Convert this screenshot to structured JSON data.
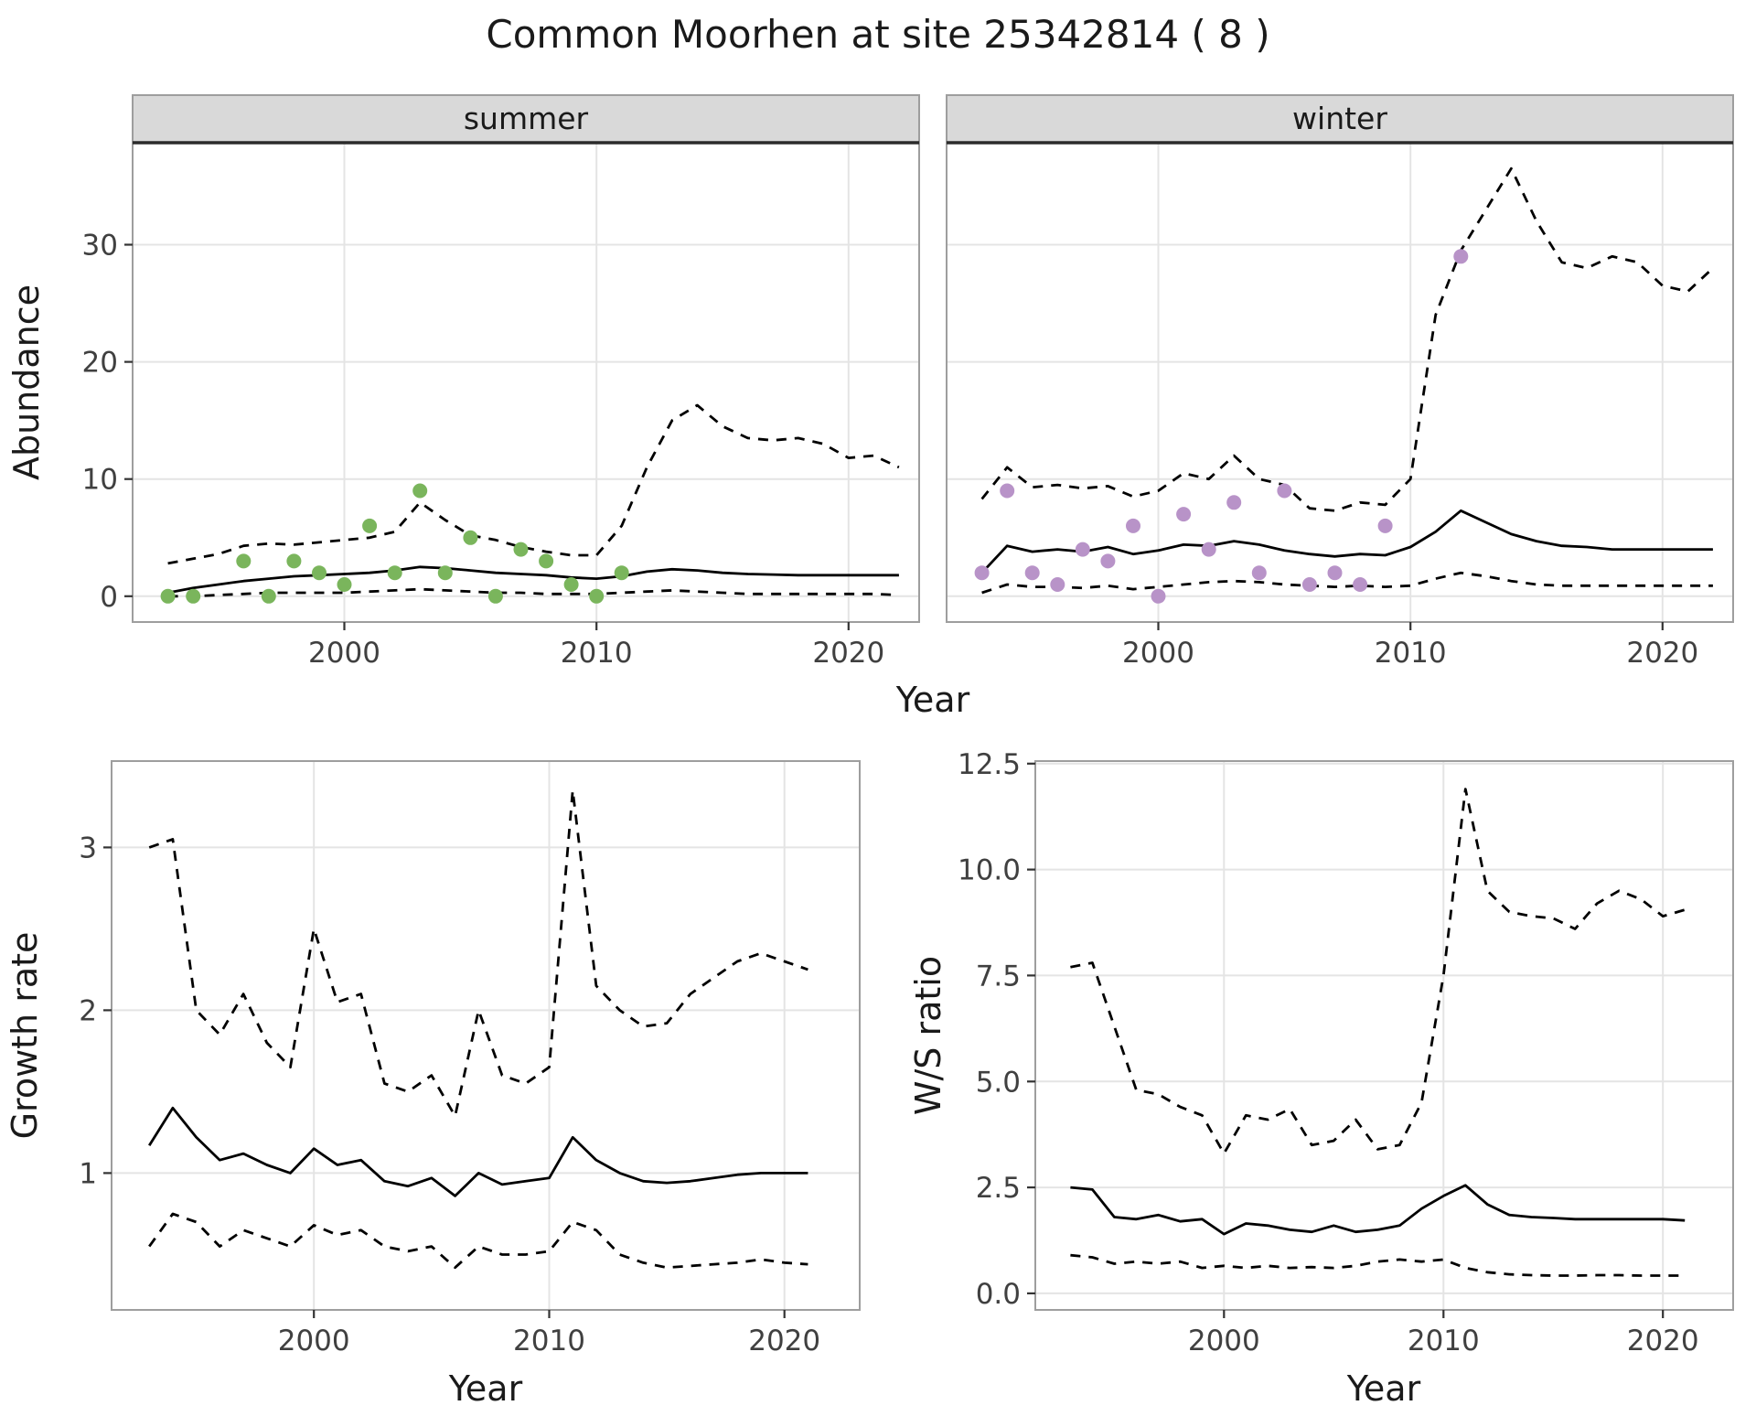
{
  "title": "Common Moorhen at site 25342814 ( 8 )",
  "colors": {
    "summer_points": "#7ab55c",
    "winter_points": "#b893c8",
    "line": "#000000",
    "strip_bg": "#d9d9d9",
    "strip_underline": "#2b2b2b",
    "grid": "#e4e4e4",
    "panel_border": "#9e9e9e",
    "tick": "#333333"
  },
  "chart_data": [
    {
      "id": "abundance-summer",
      "type": "line",
      "facet_label": "summer",
      "xlabel": "Year",
      "ylabel": "Abundance",
      "xlim": [
        1991.6,
        2022.8
      ],
      "ylim": [
        -2.2,
        38.7
      ],
      "xticks": [
        2000,
        2010,
        2020
      ],
      "xtick_labels": [
        "2000",
        "2010",
        "2020"
      ],
      "yticks": [
        0,
        10,
        20,
        30
      ],
      "ytick_labels": [
        "0",
        "10",
        "20",
        "30"
      ],
      "grid": true,
      "legend": "none",
      "series": [
        {
          "name": "upper-ci",
          "style": "dashed",
          "x": [
            1993,
            1994,
            1995,
            1996,
            1997,
            1998,
            1999,
            2000,
            2001,
            2002,
            2003,
            2004,
            2005,
            2006,
            2007,
            2008,
            2009,
            2010,
            2011,
            2012,
            2013,
            2014,
            2015,
            2016,
            2017,
            2018,
            2019,
            2020,
            2021,
            2022
          ],
          "values": [
            2.8,
            3.2,
            3.6,
            4.3,
            4.5,
            4.4,
            4.6,
            4.8,
            5.0,
            5.5,
            8.0,
            6.5,
            5.2,
            4.8,
            4.2,
            3.8,
            3.5,
            3.5,
            6.0,
            11.0,
            15.0,
            16.3,
            14.5,
            13.5,
            13.3,
            13.5,
            13.0,
            11.8,
            12.0,
            11.0
          ]
        },
        {
          "name": "lower-ci",
          "style": "dashed",
          "x": [
            1993,
            1994,
            1995,
            1996,
            1997,
            1998,
            1999,
            2000,
            2001,
            2002,
            2003,
            2004,
            2005,
            2006,
            2007,
            2008,
            2009,
            2010,
            2011,
            2012,
            2013,
            2014,
            2015,
            2016,
            2017,
            2018,
            2019,
            2020,
            2021,
            2022
          ],
          "values": [
            0.0,
            0.0,
            0.1,
            0.2,
            0.3,
            0.3,
            0.3,
            0.3,
            0.4,
            0.5,
            0.6,
            0.5,
            0.4,
            0.3,
            0.3,
            0.2,
            0.2,
            0.2,
            0.3,
            0.4,
            0.5,
            0.4,
            0.3,
            0.2,
            0.2,
            0.2,
            0.2,
            0.2,
            0.2,
            0.1
          ]
        },
        {
          "name": "fit",
          "style": "solid",
          "x": [
            1993,
            1994,
            1995,
            1996,
            1997,
            1998,
            1999,
            2000,
            2001,
            2002,
            2003,
            2004,
            2005,
            2006,
            2007,
            2008,
            2009,
            2010,
            2011,
            2012,
            2013,
            2014,
            2015,
            2016,
            2017,
            2018,
            2019,
            2020,
            2021,
            2022
          ],
          "values": [
            0.3,
            0.7,
            1.0,
            1.3,
            1.5,
            1.7,
            1.8,
            1.9,
            2.0,
            2.2,
            2.5,
            2.4,
            2.2,
            2.0,
            1.9,
            1.8,
            1.6,
            1.5,
            1.7,
            2.1,
            2.3,
            2.2,
            2.0,
            1.9,
            1.85,
            1.8,
            1.8,
            1.8,
            1.8,
            1.8
          ]
        },
        {
          "name": "observations",
          "style": "points",
          "color": "#7ab55c",
          "x": [
            1993,
            1994,
            1996,
            1997,
            1998,
            1999,
            2000,
            2001,
            2002,
            2003,
            2004,
            2005,
            2006,
            2007,
            2008,
            2009,
            2010,
            2011
          ],
          "values": [
            0,
            0,
            3,
            0,
            3,
            2,
            1,
            6,
            2,
            9,
            2,
            5,
            0,
            4,
            3,
            1,
            0,
            2
          ]
        }
      ]
    },
    {
      "id": "abundance-winter",
      "type": "line",
      "facet_label": "winter",
      "xlabel": "Year",
      "ylabel": "Abundance",
      "xlim": [
        1991.6,
        2022.8
      ],
      "ylim": [
        -2.2,
        38.7
      ],
      "xticks": [
        2000,
        2010,
        2020
      ],
      "xtick_labels": [
        "2000",
        "2010",
        "2020"
      ],
      "yticks": [
        0,
        10,
        20,
        30
      ],
      "ytick_labels": [
        "0",
        "10",
        "20",
        "30"
      ],
      "grid": true,
      "legend": "none",
      "series": [
        {
          "name": "upper-ci",
          "style": "dashed",
          "x": [
            1993,
            1994,
            1995,
            1996,
            1997,
            1998,
            1999,
            2000,
            2001,
            2002,
            2003,
            2004,
            2005,
            2006,
            2007,
            2008,
            2009,
            2010,
            2011,
            2012,
            2013,
            2014,
            2015,
            2016,
            2017,
            2018,
            2019,
            2020,
            2021,
            2022
          ],
          "values": [
            8.3,
            11.0,
            9.3,
            9.5,
            9.2,
            9.4,
            8.5,
            9.0,
            10.5,
            10.0,
            12.0,
            10.0,
            9.5,
            7.5,
            7.3,
            8.0,
            7.8,
            10.0,
            24.0,
            29.5,
            33.0,
            36.5,
            32.0,
            28.5,
            28.0,
            29.0,
            28.5,
            26.5,
            26.0,
            28.0
          ]
        },
        {
          "name": "lower-ci",
          "style": "dashed",
          "x": [
            1993,
            1994,
            1995,
            1996,
            1997,
            1998,
            1999,
            2000,
            2001,
            2002,
            2003,
            2004,
            2005,
            2006,
            2007,
            2008,
            2009,
            2010,
            2011,
            2012,
            2013,
            2014,
            2015,
            2016,
            2017,
            2018,
            2019,
            2020,
            2021,
            2022
          ],
          "values": [
            0.3,
            1.0,
            0.8,
            0.8,
            0.7,
            0.9,
            0.6,
            0.8,
            1.0,
            1.2,
            1.3,
            1.2,
            1.0,
            0.9,
            0.8,
            0.9,
            0.8,
            0.9,
            1.5,
            2.0,
            1.7,
            1.3,
            1.0,
            0.9,
            0.9,
            0.9,
            0.9,
            0.9,
            0.9,
            0.9
          ]
        },
        {
          "name": "fit",
          "style": "solid",
          "x": [
            1993,
            1994,
            1995,
            1996,
            1997,
            1998,
            1999,
            2000,
            2001,
            2002,
            2003,
            2004,
            2005,
            2006,
            2007,
            2008,
            2009,
            2010,
            2011,
            2012,
            2013,
            2014,
            2015,
            2016,
            2017,
            2018,
            2019,
            2020,
            2021,
            2022
          ],
          "values": [
            2.0,
            4.3,
            3.8,
            4.0,
            3.8,
            4.2,
            3.6,
            3.9,
            4.4,
            4.3,
            4.7,
            4.4,
            3.9,
            3.6,
            3.4,
            3.6,
            3.5,
            4.2,
            5.5,
            7.3,
            6.3,
            5.3,
            4.7,
            4.3,
            4.2,
            4.0,
            4.0,
            4.0,
            4.0,
            4.0
          ]
        },
        {
          "name": "observations",
          "style": "points",
          "color": "#b893c8",
          "x": [
            1993,
            1994,
            1995,
            1996,
            1997,
            1998,
            1999,
            2000,
            2001,
            2002,
            2003,
            2004,
            2005,
            2006,
            2007,
            2008,
            2009,
            2012
          ],
          "values": [
            2,
            9,
            2,
            1,
            4,
            3,
            6,
            0,
            7,
            4,
            8,
            2,
            9,
            1,
            2,
            1,
            6,
            29
          ]
        }
      ]
    },
    {
      "id": "growth-rate",
      "type": "line",
      "facet_label": "",
      "xlabel": "Year",
      "ylabel": "Growth rate",
      "xlim": [
        1991.4,
        2023.2
      ],
      "ylim": [
        0.16,
        3.53
      ],
      "xticks": [
        2000,
        2010,
        2020
      ],
      "xtick_labels": [
        "2000",
        "2010",
        "2020"
      ],
      "yticks": [
        1,
        2,
        3
      ],
      "ytick_labels": [
        "1",
        "2",
        "3"
      ],
      "grid": true,
      "legend": "none",
      "series": [
        {
          "name": "upper-ci",
          "style": "dashed",
          "x": [
            1993,
            1994,
            1995,
            1996,
            1997,
            1998,
            1999,
            2000,
            2001,
            2002,
            2003,
            2004,
            2005,
            2006,
            2007,
            2008,
            2009,
            2010,
            2011,
            2012,
            2013,
            2014,
            2015,
            2016,
            2017,
            2018,
            2019,
            2020,
            2021
          ],
          "values": [
            3.0,
            3.05,
            2.0,
            1.85,
            2.1,
            1.8,
            1.65,
            2.5,
            2.05,
            2.1,
            1.55,
            1.5,
            1.6,
            1.35,
            2.0,
            1.6,
            1.55,
            1.65,
            3.35,
            2.15,
            2.0,
            1.9,
            1.92,
            2.1,
            2.2,
            2.3,
            2.35,
            2.3,
            2.25
          ]
        },
        {
          "name": "lower-ci",
          "style": "dashed",
          "x": [
            1993,
            1994,
            1995,
            1996,
            1997,
            1998,
            1999,
            2000,
            2001,
            2002,
            2003,
            2004,
            2005,
            2006,
            2007,
            2008,
            2009,
            2010,
            2011,
            2012,
            2013,
            2014,
            2015,
            2016,
            2017,
            2018,
            2019,
            2020,
            2021
          ],
          "values": [
            0.55,
            0.75,
            0.7,
            0.55,
            0.65,
            0.6,
            0.55,
            0.68,
            0.62,
            0.65,
            0.55,
            0.52,
            0.55,
            0.42,
            0.55,
            0.5,
            0.5,
            0.52,
            0.7,
            0.65,
            0.5,
            0.45,
            0.42,
            0.43,
            0.44,
            0.45,
            0.47,
            0.45,
            0.44
          ]
        },
        {
          "name": "fit",
          "style": "solid",
          "x": [
            1993,
            1994,
            1995,
            1996,
            1997,
            1998,
            1999,
            2000,
            2001,
            2002,
            2003,
            2004,
            2005,
            2006,
            2007,
            2008,
            2009,
            2010,
            2011,
            2012,
            2013,
            2014,
            2015,
            2016,
            2017,
            2018,
            2019,
            2020,
            2021
          ],
          "values": [
            1.17,
            1.4,
            1.22,
            1.08,
            1.12,
            1.05,
            1.0,
            1.15,
            1.05,
            1.08,
            0.95,
            0.92,
            0.97,
            0.86,
            1.0,
            0.93,
            0.95,
            0.97,
            1.22,
            1.08,
            1.0,
            0.95,
            0.94,
            0.95,
            0.97,
            0.99,
            1.0,
            1.0,
            1.0
          ]
        }
      ]
    },
    {
      "id": "ws-ratio",
      "type": "line",
      "facet_label": "",
      "xlabel": "Year",
      "ylabel": "W/S ratio",
      "xlim": [
        1991.4,
        2023.2
      ],
      "ylim": [
        -0.39,
        12.56
      ],
      "xticks": [
        2000,
        2010,
        2020
      ],
      "xtick_labels": [
        "2000",
        "2010",
        "2020"
      ],
      "yticks": [
        0,
        2.5,
        5,
        7.5,
        10,
        12.5
      ],
      "ytick_labels": [
        "0.0",
        "2.5",
        "5.0",
        "7.5",
        "10.0",
        "12.5"
      ],
      "grid": true,
      "legend": "none",
      "series": [
        {
          "name": "upper-ci",
          "style": "dashed",
          "x": [
            1993,
            1994,
            1995,
            1996,
            1997,
            1998,
            1999,
            2000,
            2001,
            2002,
            2003,
            2004,
            2005,
            2006,
            2007,
            2008,
            2009,
            2010,
            2011,
            2012,
            2013,
            2014,
            2015,
            2016,
            2017,
            2018,
            2019,
            2020,
            2021
          ],
          "values": [
            7.7,
            7.8,
            6.3,
            4.8,
            4.7,
            4.4,
            4.2,
            3.3,
            4.2,
            4.1,
            4.35,
            3.5,
            3.6,
            4.1,
            3.4,
            3.5,
            4.5,
            7.5,
            11.9,
            9.5,
            9.0,
            8.9,
            8.85,
            8.6,
            9.2,
            9.5,
            9.3,
            8.9,
            9.05
          ]
        },
        {
          "name": "lower-ci",
          "style": "dashed",
          "x": [
            1993,
            1994,
            1995,
            1996,
            1997,
            1998,
            1999,
            2000,
            2001,
            2002,
            2003,
            2004,
            2005,
            2006,
            2007,
            2008,
            2009,
            2010,
            2011,
            2012,
            2013,
            2014,
            2015,
            2016,
            2017,
            2018,
            2019,
            2020,
            2021
          ],
          "values": [
            0.9,
            0.85,
            0.7,
            0.75,
            0.7,
            0.75,
            0.6,
            0.65,
            0.6,
            0.65,
            0.6,
            0.62,
            0.6,
            0.65,
            0.75,
            0.8,
            0.75,
            0.8,
            0.6,
            0.5,
            0.45,
            0.43,
            0.42,
            0.42,
            0.43,
            0.43,
            0.42,
            0.42,
            0.42
          ]
        },
        {
          "name": "fit",
          "style": "solid",
          "x": [
            1993,
            1994,
            1995,
            1996,
            1997,
            1998,
            1999,
            2000,
            2001,
            2002,
            2003,
            2004,
            2005,
            2006,
            2007,
            2008,
            2009,
            2010,
            2011,
            2012,
            2013,
            2014,
            2015,
            2016,
            2017,
            2018,
            2019,
            2020,
            2021
          ],
          "values": [
            2.5,
            2.45,
            1.8,
            1.75,
            1.85,
            1.7,
            1.75,
            1.4,
            1.65,
            1.6,
            1.5,
            1.45,
            1.6,
            1.45,
            1.5,
            1.6,
            2.0,
            2.3,
            2.55,
            2.1,
            1.85,
            1.8,
            1.78,
            1.75,
            1.75,
            1.75,
            1.75,
            1.75,
            1.72
          ]
        }
      ]
    }
  ]
}
